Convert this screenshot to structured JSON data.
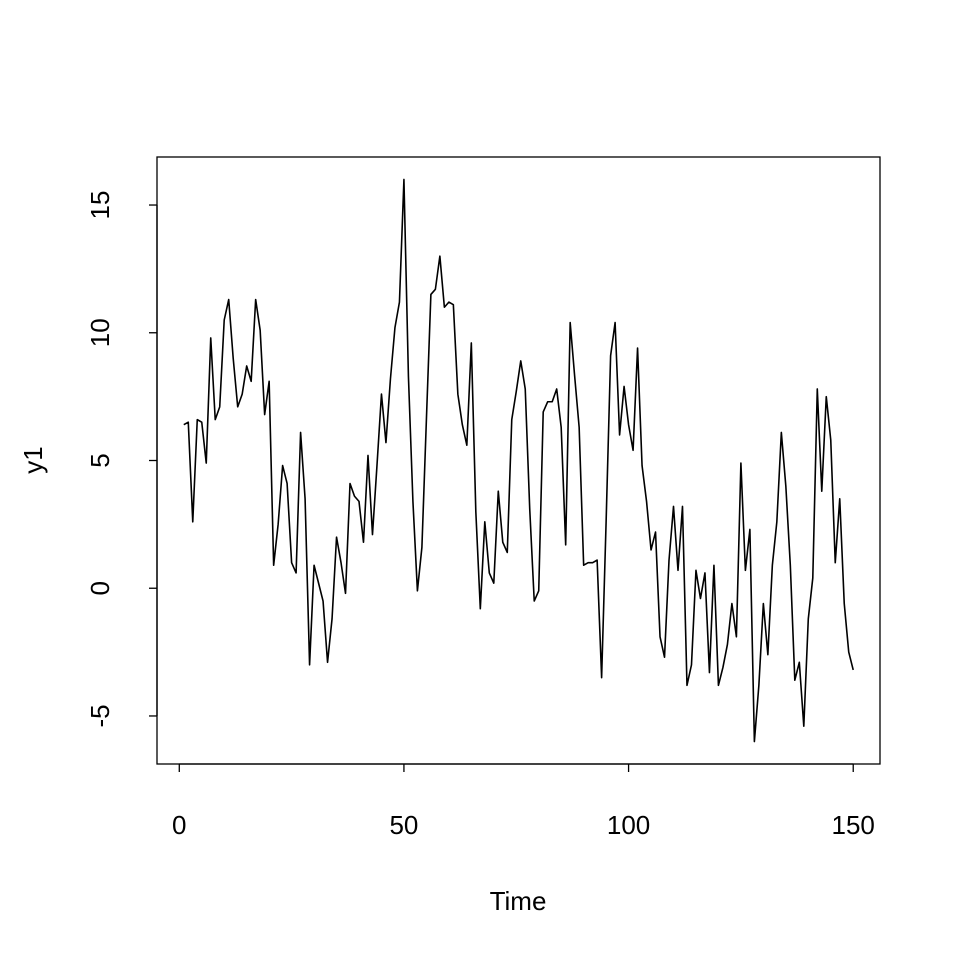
{
  "chart_data": {
    "type": "line",
    "x_label": "Time",
    "y_label": "y1",
    "x": [
      1,
      2,
      3,
      4,
      5,
      6,
      7,
      8,
      9,
      10,
      11,
      12,
      13,
      14,
      15,
      16,
      17,
      18,
      19,
      20,
      21,
      22,
      23,
      24,
      25,
      26,
      27,
      28,
      29,
      30,
      31,
      32,
      33,
      34,
      35,
      36,
      37,
      38,
      39,
      40,
      41,
      42,
      43,
      44,
      45,
      46,
      47,
      48,
      49,
      50,
      51,
      52,
      53,
      54,
      55,
      56,
      57,
      58,
      59,
      60,
      61,
      62,
      63,
      64,
      65,
      66,
      67,
      68,
      69,
      70,
      71,
      72,
      73,
      74,
      75,
      76,
      77,
      78,
      79,
      80,
      81,
      82,
      83,
      84,
      85,
      86,
      87,
      88,
      89,
      90,
      91,
      92,
      93,
      94,
      95,
      96,
      97,
      98,
      99,
      100,
      101,
      102,
      103,
      104,
      105,
      106,
      107,
      108,
      109,
      110,
      111,
      112,
      113,
      114,
      115,
      116,
      117,
      118,
      119,
      120,
      121,
      122,
      123,
      124,
      125,
      126,
      127,
      128,
      129,
      130,
      131,
      132,
      133,
      134,
      135,
      136,
      137,
      138,
      139,
      140,
      141,
      142,
      143,
      144,
      145,
      146,
      147,
      148,
      149,
      150
    ],
    "values": [
      6.4,
      6.5,
      2.6,
      6.6,
      6.5,
      4.9,
      9.8,
      6.6,
      7.1,
      10.5,
      11.3,
      9.0,
      7.1,
      7.6,
      8.7,
      8.1,
      11.3,
      10.1,
      6.8,
      8.1,
      0.9,
      2.5,
      4.8,
      4.1,
      1.0,
      0.6,
      6.1,
      3.5,
      -3.0,
      0.9,
      0.2,
      -0.5,
      -2.9,
      -1.2,
      2.0,
      1.0,
      -0.2,
      4.1,
      3.6,
      3.4,
      1.8,
      5.2,
      2.1,
      4.8,
      7.6,
      5.7,
      8.2,
      10.2,
      11.2,
      16.0,
      8.3,
      3.4,
      -0.1,
      1.6,
      6.6,
      11.5,
      11.7,
      13.0,
      11.0,
      11.2,
      11.1,
      7.6,
      6.4,
      5.6,
      9.6,
      3.0,
      -0.8,
      2.6,
      0.6,
      0.2,
      3.8,
      1.8,
      1.4,
      6.6,
      7.7,
      8.9,
      7.8,
      3.1,
      -0.5,
      -0.1,
      6.9,
      7.3,
      7.3,
      7.8,
      6.3,
      1.7,
      10.4,
      8.3,
      6.3,
      0.9,
      1.0,
      1.0,
      1.1,
      -3.5,
      2.6,
      9.1,
      10.4,
      6.0,
      7.9,
      6.4,
      5.4,
      9.4,
      4.8,
      3.4,
      1.5,
      2.2,
      -1.9,
      -2.7,
      1.1,
      3.2,
      0.7,
      3.2,
      -3.8,
      -3.0,
      0.7,
      -0.4,
      0.6,
      -3.3,
      0.9,
      -3.8,
      -3.1,
      -2.2,
      -0.6,
      -1.9,
      4.9,
      0.7,
      2.3,
      -6.0,
      -3.8,
      -0.6,
      -2.6,
      0.9,
      2.6,
      6.1,
      4.0,
      0.9,
      -3.6,
      -2.9,
      -5.4,
      -1.2,
      0.4,
      7.8,
      3.8,
      7.5,
      5.8,
      1.0,
      3.5,
      -0.6,
      -2.5,
      -3.2
    ],
    "color": "#000000",
    "xlim": [
      -4.96,
      155.96
    ],
    "ylim": [
      -6.88,
      16.88
    ],
    "xticks": [
      0,
      50,
      100,
      150
    ],
    "yticks": [
      -5,
      0,
      5,
      10,
      15
    ]
  }
}
